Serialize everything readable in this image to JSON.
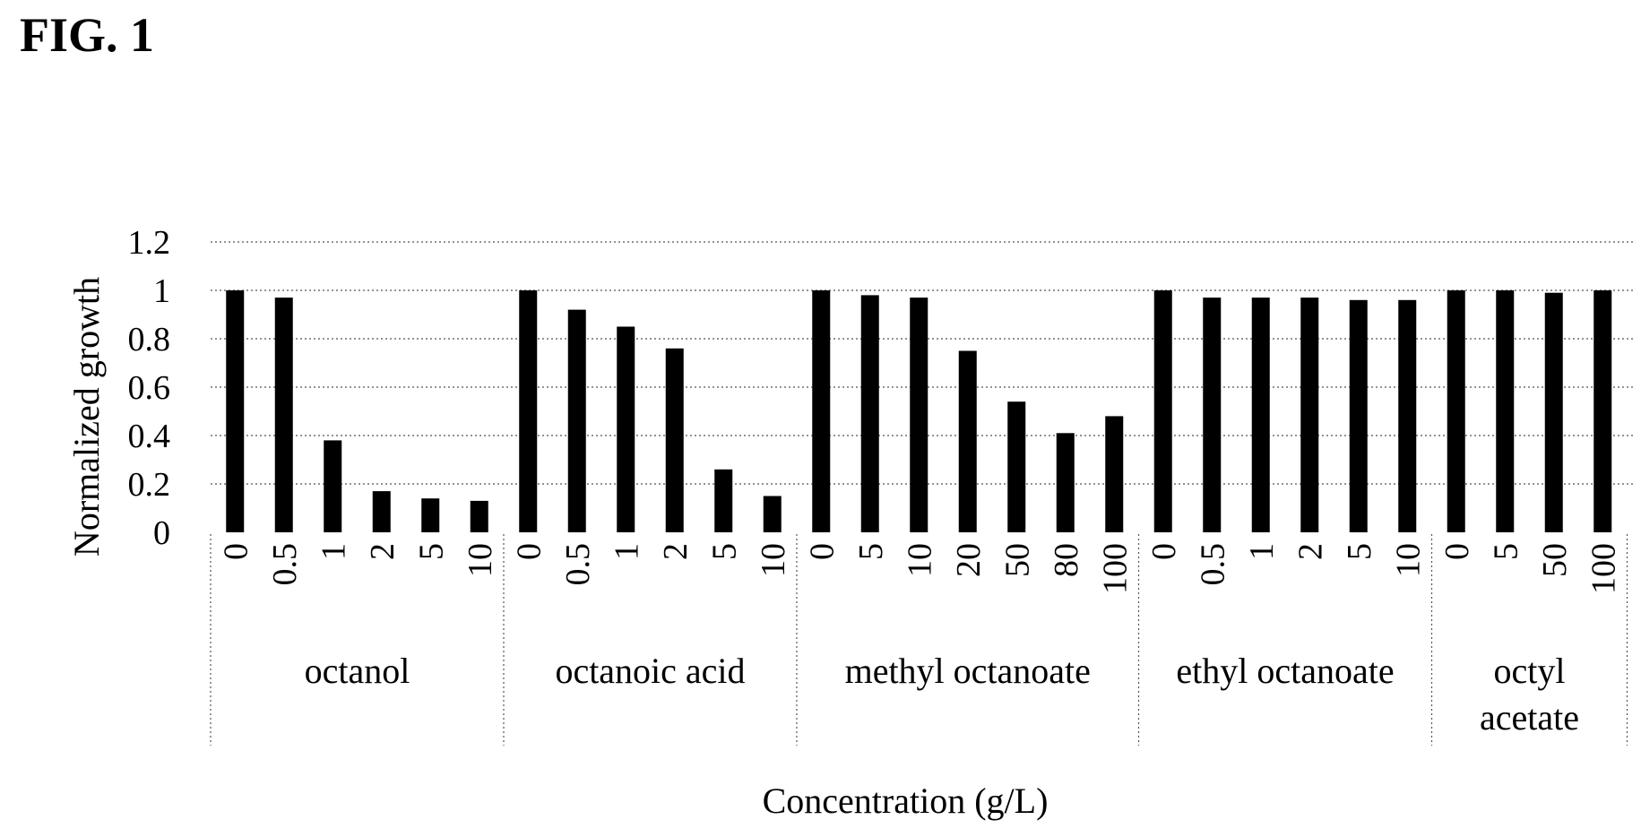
{
  "figure_label": "FIG. 1",
  "chart_data": {
    "type": "bar",
    "title": "",
    "xlabel": "Concentration (g/L)",
    "ylabel": "Normalized growth",
    "ylim": [
      0,
      1.2
    ],
    "yticks": [
      "0",
      "0.2",
      "0.4",
      "0.6",
      "0.8",
      "1",
      "1.2"
    ],
    "grid": "horizontal dotted",
    "bar_color": "#000000",
    "groups": [
      {
        "name": "octanol",
        "categories": [
          "0",
          "0.5",
          "1",
          "2",
          "5",
          "10"
        ],
        "values": [
          1.0,
          0.97,
          0.38,
          0.17,
          0.14,
          0.13
        ]
      },
      {
        "name": "octanoic acid",
        "categories": [
          "0",
          "0.5",
          "1",
          "2",
          "5",
          "10"
        ],
        "values": [
          1.0,
          0.92,
          0.85,
          0.76,
          0.26,
          0.15
        ]
      },
      {
        "name": "methyl octanoate",
        "categories": [
          "0",
          "5",
          "10",
          "20",
          "50",
          "80",
          "100"
        ],
        "values": [
          1.0,
          0.98,
          0.97,
          0.75,
          0.54,
          0.41,
          0.48
        ]
      },
      {
        "name": "ethyl octanoate",
        "categories": [
          "0",
          "0.5",
          "1",
          "2",
          "5",
          "10"
        ],
        "values": [
          1.0,
          0.97,
          0.97,
          0.97,
          0.96,
          0.96
        ]
      },
      {
        "name": "octyl\nacetate",
        "categories": [
          "0",
          "5",
          "50",
          "100"
        ],
        "values": [
          1.0,
          1.0,
          0.99,
          1.0
        ]
      }
    ]
  }
}
